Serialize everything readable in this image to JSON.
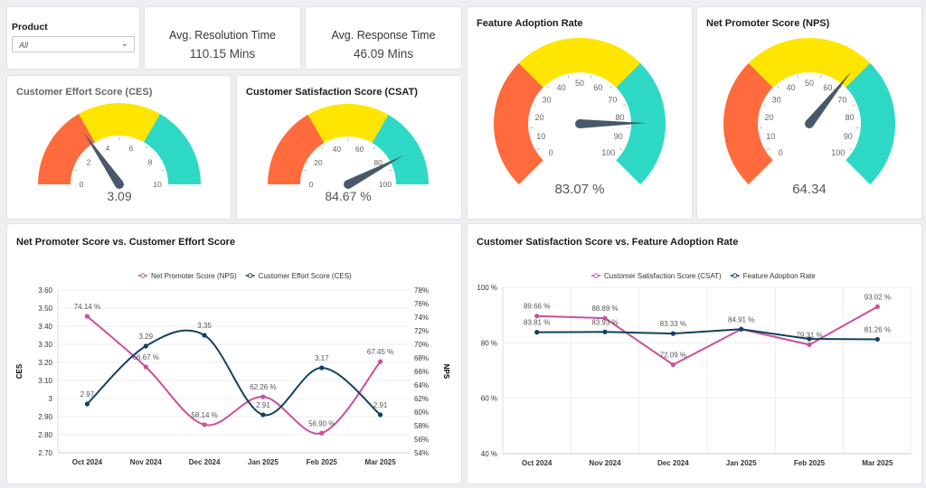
{
  "filter": {
    "label": "Product",
    "value": "All"
  },
  "kpis": [
    {
      "label": "Avg. Resolution Time",
      "value": "110.15 Mins"
    },
    {
      "label": "Avg. Response Time",
      "value": "46.09 Mins"
    }
  ],
  "colors": {
    "red": "#ff6b3d",
    "yellow": "#ffe500",
    "teal": "#2dd9c5",
    "needle": "#4a586b",
    "pink": "#c9509a",
    "navy": "#12415f"
  },
  "gauges": {
    "ces": {
      "title": "Customer Effort Score (CES)",
      "min": 0,
      "max": 10,
      "value": 3.09,
      "display": "3.09",
      "ticks": [
        "0",
        "2",
        "4",
        "6",
        "8",
        "10"
      ]
    },
    "csat": {
      "title": "Customer Satisfaction Score (CSAT)",
      "min": 0,
      "max": 100,
      "value": 84.67,
      "display": "84.67 %",
      "ticks": [
        "0",
        "20",
        "40",
        "60",
        "80",
        "100"
      ]
    },
    "far": {
      "title": "Feature Adoption Rate",
      "min": 0,
      "max": 100,
      "value": 83.07,
      "display": "83.07 %",
      "ticks": [
        "0",
        "10",
        "20",
        "30",
        "40",
        "50",
        "60",
        "70",
        "80",
        "90",
        "100"
      ]
    },
    "nps": {
      "title": "Net Promoter Score (NPS)",
      "min": 0,
      "max": 100,
      "value": 64.34,
      "display": "64.34",
      "ticks": [
        "0",
        "10",
        "20",
        "30",
        "40",
        "50",
        "60",
        "70",
        "80",
        "90",
        "100"
      ]
    }
  },
  "chart_data": [
    {
      "type": "line",
      "title": "Net Promoter Score vs. Customer Effort Score",
      "categories": [
        "Oct 2024",
        "Nov 2024",
        "Dec 2024",
        "Jan 2025",
        "Feb 2025",
        "Mar 2025"
      ],
      "ylabel": "CES",
      "y2label": "NPS",
      "yticks": [
        "3.60",
        "3.50",
        "3.40",
        "3.30",
        "3.20",
        "3.10",
        "3",
        "2.90",
        "2.80",
        "2.70"
      ],
      "ylim": [
        2.7,
        3.6
      ],
      "y2ticks": [
        "78%",
        "76%",
        "74%",
        "72%",
        "70%",
        "68%",
        "66%",
        "64%",
        "62%",
        "60%",
        "58%",
        "56%",
        "54%"
      ],
      "y2lim": [
        54,
        78
      ],
      "legend_position": "top-center",
      "series": [
        {
          "name": "Net Promoter Score (NPS)",
          "axis": "right",
          "values": [
            74.14,
            66.67,
            58.14,
            62.26,
            56.9,
            67.45
          ],
          "labels": [
            "74.14 %",
            "66.67 %",
            "58.14 %",
            "62.26 %",
            "56.90 %",
            "67.45 %"
          ]
        },
        {
          "name": "Customer Effort Score (CES)",
          "axis": "left",
          "values": [
            2.97,
            3.29,
            3.35,
            2.91,
            3.17,
            2.91
          ],
          "labels": [
            "2.97",
            "3.29",
            "3.35",
            "2.91",
            "3.17",
            "2.91"
          ]
        }
      ]
    },
    {
      "type": "line",
      "title": "Customer Satisfaction Score vs. Feature Adoption Rate",
      "categories": [
        "Oct 2024",
        "Nov 2024",
        "Dec 2024",
        "Jan 2025",
        "Feb 2025",
        "Mar 2025"
      ],
      "yticks": [
        "100 %",
        "80 %",
        "60 %",
        "40 %"
      ],
      "ylim": [
        40,
        100
      ],
      "legend_position": "top-center",
      "series": [
        {
          "name": "Customer Satisfaction Score (CSAT)",
          "values": [
            89.66,
            88.89,
            72.09,
            84.91,
            79.31,
            93.02
          ],
          "labels": [
            "89.66 %",
            "88.89 %",
            "72.09 %",
            null,
            "79.31 %",
            "93.02 %"
          ]
        },
        {
          "name": "Feature Adoption Rate",
          "values": [
            83.81,
            83.93,
            83.33,
            84.91,
            81.4,
            81.26
          ],
          "labels": [
            "83.81 %",
            "83.93 %",
            "83.33 %",
            "84.91 %",
            null,
            "81.26 %"
          ]
        }
      ]
    }
  ]
}
